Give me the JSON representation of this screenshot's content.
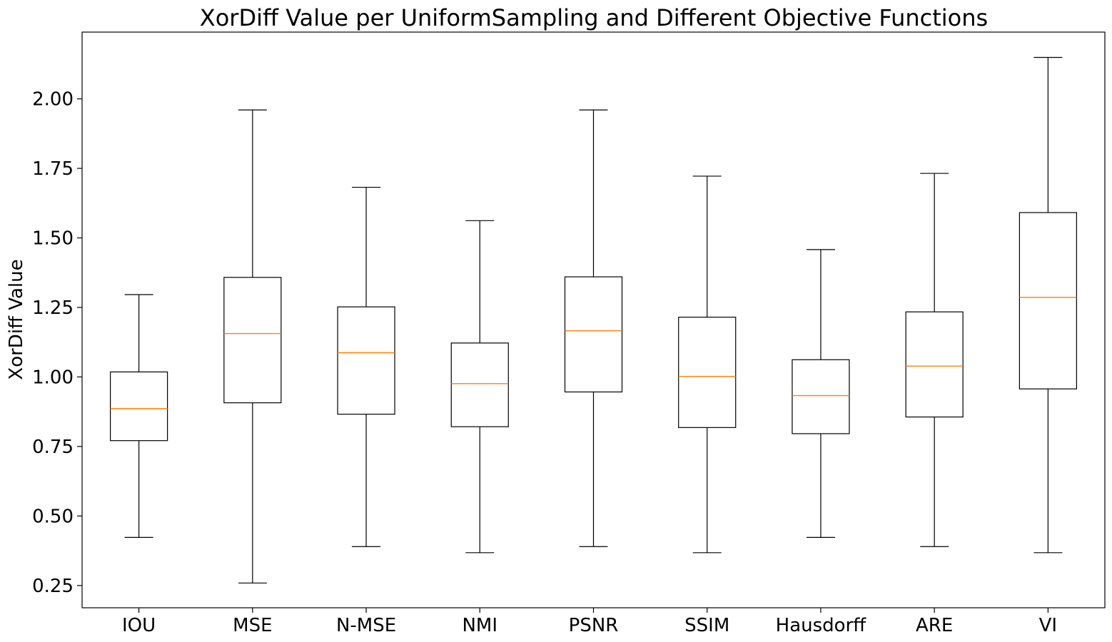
{
  "chart_data": {
    "type": "boxplot",
    "title": "XorDiff Value per UniformSampling and Different Objective Functions",
    "xlabel": "",
    "ylabel": "XorDiff Value",
    "ylim": [
      0.17,
      2.24
    ],
    "yticks": [
      "0.25",
      "0.50",
      "0.75",
      "1.00",
      "1.25",
      "1.50",
      "1.75",
      "2.00"
    ],
    "grid": false,
    "colors": {
      "box": "#000000",
      "median": "#ff7f0e",
      "background": "#ffffff"
    },
    "categories": [
      "IOU",
      "MSE",
      "N-MSE",
      "NMI",
      "PSNR",
      "SSIM",
      "Hausdorff",
      "ARE",
      "VI"
    ],
    "boxes": [
      {
        "label": "IOU",
        "whisker_low": 0.423,
        "q1": 0.771,
        "median": 0.886,
        "q3": 1.018,
        "whisker_high": 1.296
      },
      {
        "label": "MSE",
        "whisker_low": 0.259,
        "q1": 0.907,
        "median": 1.156,
        "q3": 1.358,
        "whisker_high": 1.96
      },
      {
        "label": "N-MSE",
        "whisker_low": 0.39,
        "q1": 0.866,
        "median": 1.087,
        "q3": 1.252,
        "whisker_high": 1.682
      },
      {
        "label": "NMI",
        "whisker_low": 0.368,
        "q1": 0.821,
        "median": 0.976,
        "q3": 1.122,
        "whisker_high": 1.562
      },
      {
        "label": "PSNR",
        "whisker_low": 0.39,
        "q1": 0.946,
        "median": 1.166,
        "q3": 1.36,
        "whisker_high": 1.96
      },
      {
        "label": "SSIM",
        "whisker_low": 0.368,
        "q1": 0.818,
        "median": 1.002,
        "q3": 1.215,
        "whisker_high": 1.722
      },
      {
        "label": "Hausdorff",
        "whisker_low": 0.423,
        "q1": 0.796,
        "median": 0.933,
        "q3": 1.062,
        "whisker_high": 1.458
      },
      {
        "label": "ARE",
        "whisker_low": 0.39,
        "q1": 0.856,
        "median": 1.039,
        "q3": 1.234,
        "whisker_high": 1.732
      },
      {
        "label": "VI",
        "whisker_low": 0.368,
        "q1": 0.957,
        "median": 1.286,
        "q3": 1.591,
        "whisker_high": 2.149
      }
    ]
  }
}
